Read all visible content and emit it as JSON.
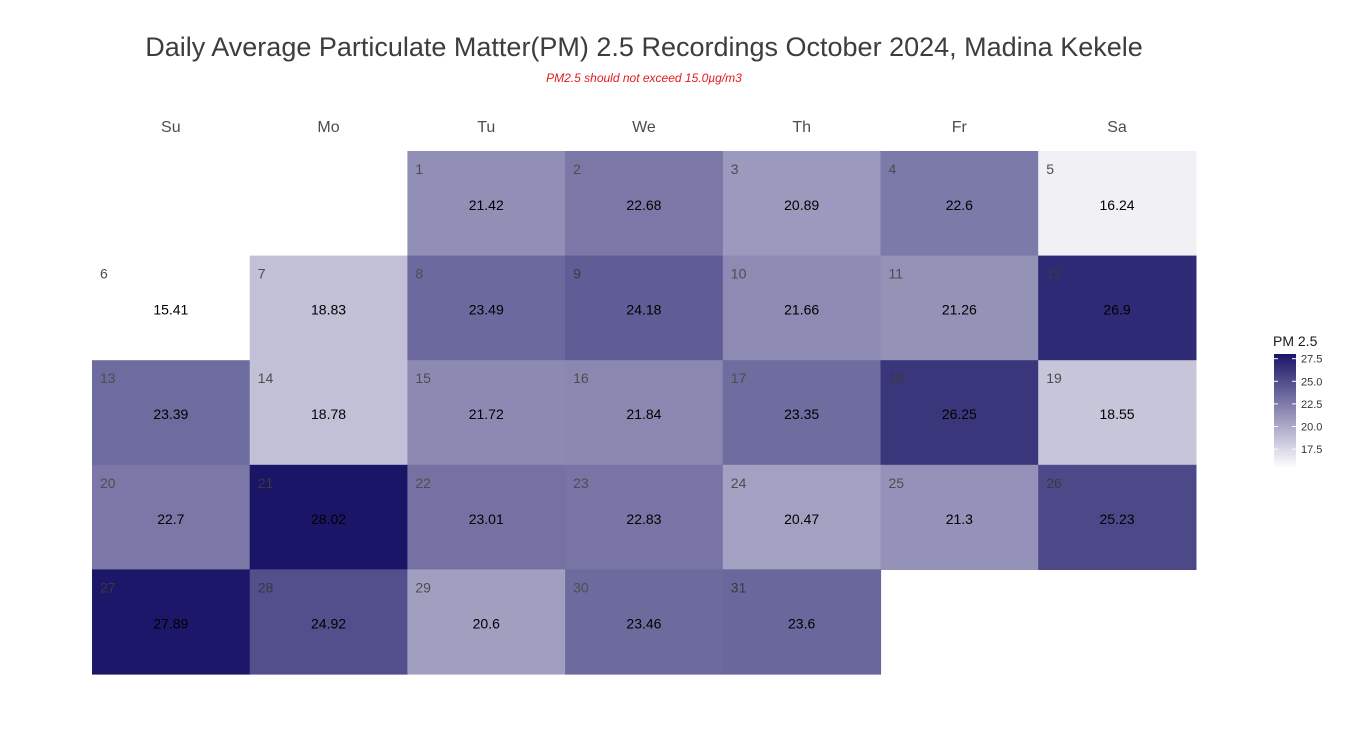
{
  "colors": {
    "low": "#ffffff",
    "high": "#1a1567",
    "subtitle": "#e31a1c"
  },
  "chart_data": {
    "type": "heatmap",
    "title": "Daily Average Particulate Matter(PM) 2.5 Recordings October 2024,  Madina Kekele",
    "subtitle": "PM2.5 should not exceed 15.0µg/m3",
    "weekdays": [
      "Su",
      "Mo",
      "Tu",
      "We",
      "Th",
      "Fr",
      "Sa"
    ],
    "first_weekday_index": 2,
    "days": [
      1,
      2,
      3,
      4,
      5,
      6,
      7,
      8,
      9,
      10,
      11,
      12,
      13,
      14,
      15,
      16,
      17,
      18,
      19,
      20,
      21,
      22,
      23,
      24,
      25,
      26,
      27,
      28,
      29,
      30,
      31
    ],
    "values": [
      "21.42",
      "22.68",
      "20.89",
      "22.6",
      "16.24",
      "15.41",
      "18.83",
      "23.49",
      "24.18",
      "21.66",
      "21.26",
      "26.9",
      "23.39",
      "18.78",
      "21.72",
      "21.84",
      "23.35",
      "26.25",
      "18.55",
      "22.7",
      "28.02",
      "23.01",
      "22.83",
      "20.47",
      "21.3",
      "25.23",
      "27.89",
      "24.92",
      "20.6",
      "23.46",
      "23.6"
    ],
    "legend": {
      "title": "PM 2.5",
      "ticks": [
        17.5,
        20.0,
        22.5,
        25.0,
        27.5
      ],
      "tick_labels": [
        "17.5",
        "20.0",
        "22.5",
        "25.0",
        "27.5"
      ],
      "range": [
        15.41,
        28.02
      ]
    }
  }
}
